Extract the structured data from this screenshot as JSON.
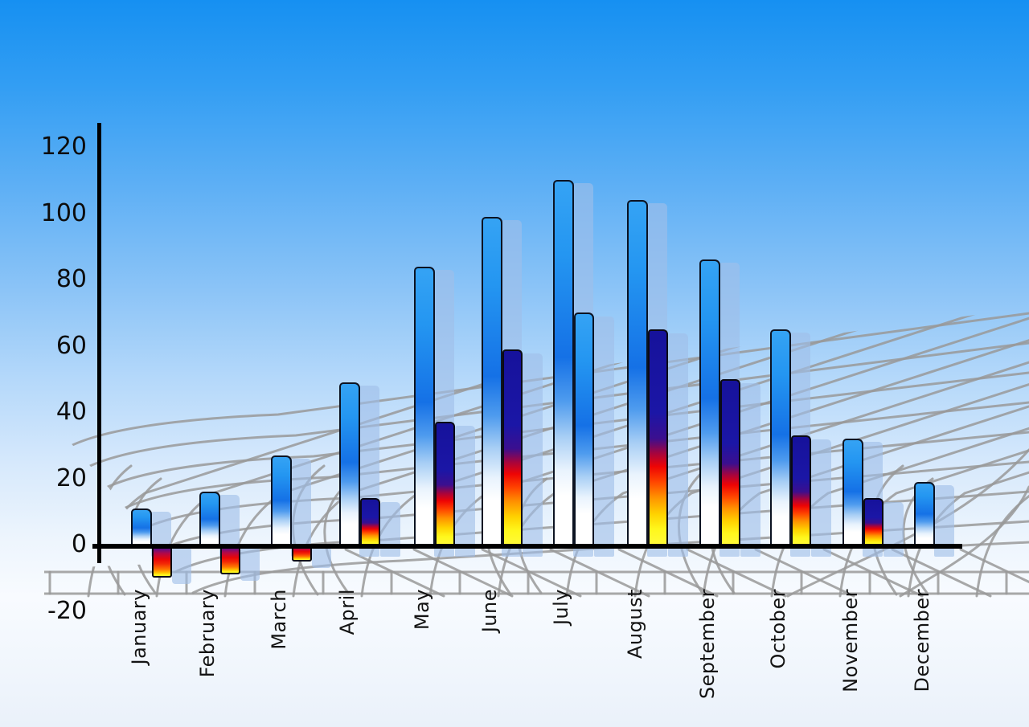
{
  "chart_data": {
    "type": "bar",
    "title": "",
    "categories": [
      "January",
      "February",
      "March",
      "April",
      "May",
      "June",
      "July",
      "August",
      "September",
      "October",
      "November",
      "December"
    ],
    "series": [
      {
        "name": "series-1-blue-gradient",
        "values": [
          11,
          16,
          27,
          49,
          84,
          99,
          110,
          104,
          86,
          65,
          32,
          19
        ]
      },
      {
        "name": "series-2-fire-gradient",
        "values": [
          -10,
          -9,
          -5,
          14,
          37,
          59,
          70,
          65,
          50,
          33,
          14,
          null
        ]
      }
    ],
    "series2_bar_styles": [
      "fire",
      "fire",
      "fire",
      "fire",
      "fire",
      "fire",
      "blue",
      "fire",
      "fire",
      "fire",
      "fire",
      "none"
    ],
    "y_ticks": [
      120,
      100,
      80,
      60,
      40,
      20,
      0,
      -20
    ],
    "ylim": [
      -20,
      120
    ],
    "xlabel": "",
    "ylabel": "",
    "legend_position": "none",
    "grid_style": "decorative curved gray perspective mesh",
    "colors": {
      "sky_top": "#1690F2",
      "sky_bottom": "#EAF1FA",
      "bar_blue_top": "#35A3F4",
      "bar_blue_deep": "#1571E6",
      "bar_blue_fade": "#FFFFFF",
      "fire_navy": "#16129B",
      "fire_red": "#EE0404",
      "fire_orange": "#FF9000",
      "fire_yellow": "#FFF71C",
      "shadow_blue": "#A0BEE8",
      "grid_gray": "#999999",
      "axis_black": "#000000"
    }
  }
}
